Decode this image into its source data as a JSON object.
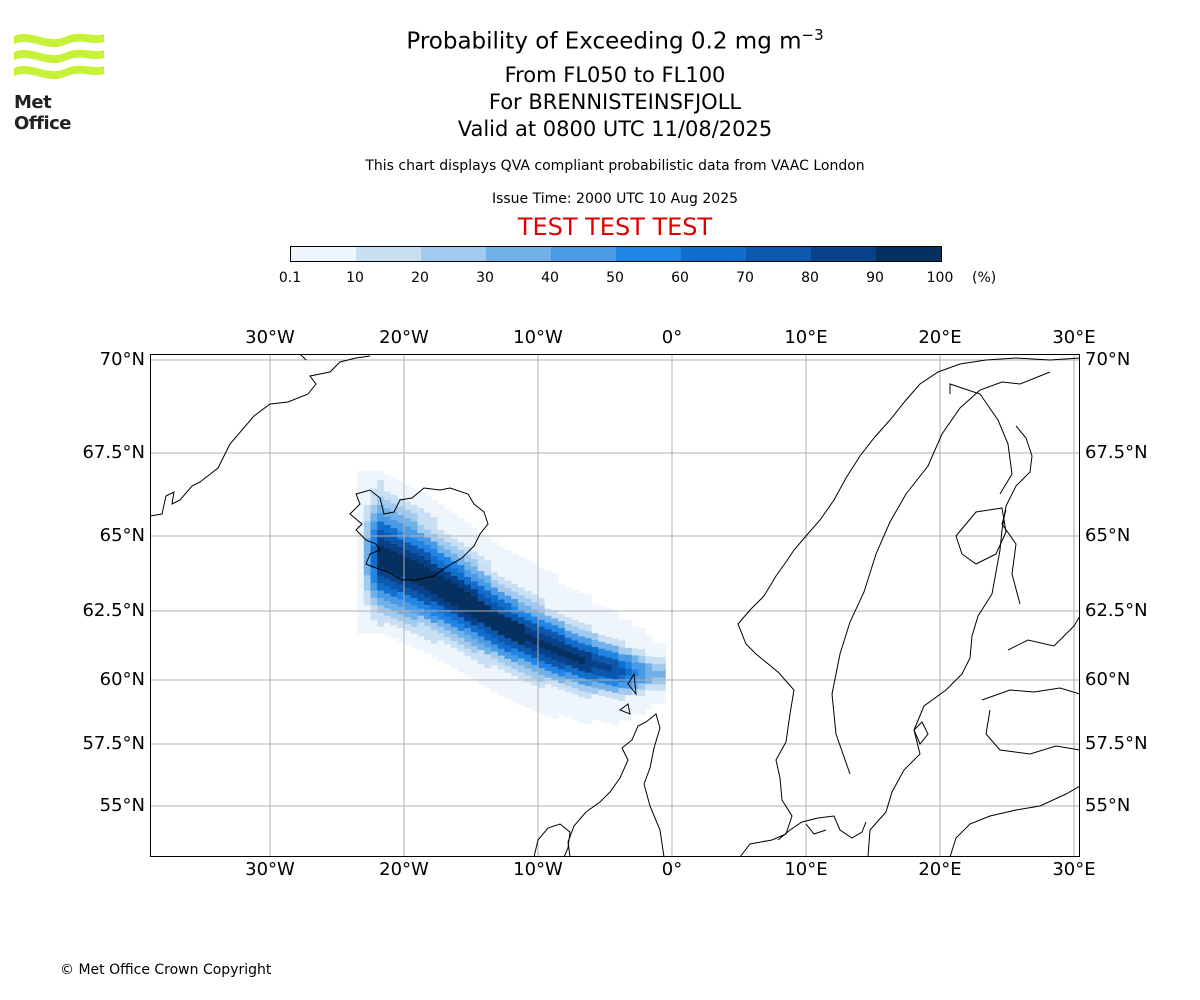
{
  "branding": {
    "logo_text": "Met Office",
    "copyright": "© Met Office Crown Copyright"
  },
  "header": {
    "title": "Probability of Exceeding 0.2 mg m",
    "title_exponent": "−3",
    "levels": "From FL050 to FL100",
    "volcano": "For BRENNISTEINSFJOLL",
    "valid": "Valid at 0800 UTC 11/08/2025",
    "note": "This chart displays QVA compliant probabilistic data from VAAC London",
    "issue": "Issue Time: 2000 UTC 10 Aug 2025",
    "test_banner": "TEST TEST TEST"
  },
  "colorbar": {
    "ticks": [
      "0.1",
      "10",
      "20",
      "30",
      "40",
      "50",
      "60",
      "70",
      "80",
      "90",
      "100"
    ],
    "unit": "(%)",
    "colors": [
      "#eef5fc",
      "#c8dff4",
      "#a2caee",
      "#72b1e8",
      "#4a9be6",
      "#2185e6",
      "#116ecc",
      "#0b58ae",
      "#084189",
      "#06305f"
    ]
  },
  "map": {
    "lon_labels": [
      "30°W",
      "20°W",
      "10°W",
      "0°",
      "10°E",
      "20°E",
      "30°E"
    ],
    "lat_labels": [
      "70°N",
      "67.5°N",
      "65°N",
      "62.5°N",
      "60°N",
      "57.5°N",
      "55°N"
    ],
    "gridline_color": "#b0b0b0",
    "coast_color": "#000000"
  },
  "chart_data": {
    "type": "heatmap",
    "title": "Probability of Exceeding 0.2 mg m−3",
    "value_unit": "%",
    "color_levels": [
      0.1,
      10,
      20,
      30,
      40,
      50,
      60,
      70,
      80,
      90,
      100
    ],
    "plume_axis": [
      {
        "lon": -22.0,
        "lat": 64.2,
        "half_width_deg": 1.2,
        "peak": 95
      },
      {
        "lon": -19.0,
        "lat": 63.6,
        "half_width_deg": 1.1,
        "peak": 95
      },
      {
        "lon": -16.0,
        "lat": 62.8,
        "half_width_deg": 1.0,
        "peak": 95
      },
      {
        "lon": -13.0,
        "lat": 61.9,
        "half_width_deg": 0.9,
        "peak": 95
      },
      {
        "lon": -10.0,
        "lat": 61.2,
        "half_width_deg": 0.8,
        "peak": 95
      },
      {
        "lon": -7.0,
        "lat": 60.6,
        "half_width_deg": 0.7,
        "peak": 92
      },
      {
        "lon": -4.0,
        "lat": 60.2,
        "half_width_deg": 0.6,
        "peak": 75
      },
      {
        "lon": -1.5,
        "lat": 60.1,
        "half_width_deg": 0.4,
        "peak": 30
      }
    ]
  }
}
